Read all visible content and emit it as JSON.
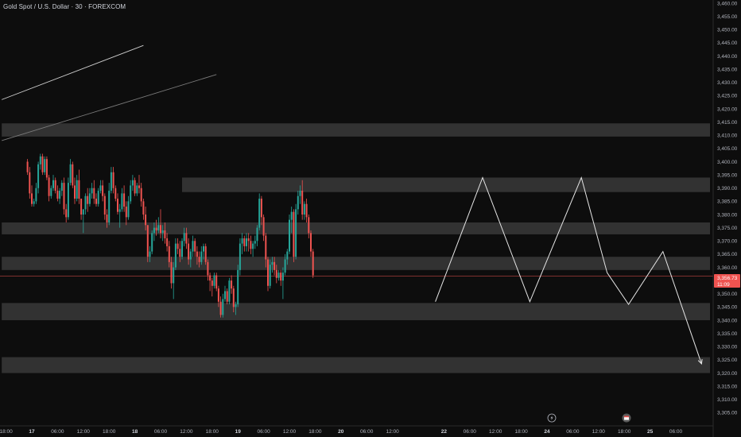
{
  "header": {
    "title": "Gold Spot / U.S. Dollar · 30 · FOREXCOM"
  },
  "price_tag": {
    "price": "3,356.73",
    "countdown": "11:09"
  },
  "icons": {
    "lightning": "lightning-icon",
    "calendar": "calendar-icon"
  },
  "colors": {
    "bg": "#0d0d0d",
    "up": "#26a69a",
    "down": "#ef5350",
    "zone": "#3a3a3a",
    "projection": "#e6e6e6",
    "price_line": "#ef5350"
  },
  "chart_data": {
    "type": "candlestick",
    "title": "Gold Spot / U.S. Dollar · 30 · FOREXCOM",
    "ylim": [
      3303,
      3462
    ],
    "y_ticks": [
      3305,
      3310,
      3315,
      3320,
      3325,
      3330,
      3335,
      3340,
      3345,
      3350,
      3355,
      3360,
      3365,
      3370,
      3375,
      3380,
      3385,
      3390,
      3395,
      3400,
      3405,
      3410,
      3415,
      3420,
      3425,
      3430,
      3435,
      3440,
      3445,
      3450,
      3455,
      3460
    ],
    "x_ticks": [
      {
        "label": "18:00",
        "t": -6
      },
      {
        "label": "17",
        "t": 0,
        "day": true
      },
      {
        "label": "06:00",
        "t": 6
      },
      {
        "label": "12:00",
        "t": 12
      },
      {
        "label": "18:00",
        "t": 18
      },
      {
        "label": "18",
        "t": 24,
        "day": true
      },
      {
        "label": "06:00",
        "t": 30
      },
      {
        "label": "12:00",
        "t": 36
      },
      {
        "label": "18:00",
        "t": 42
      },
      {
        "label": "19",
        "t": 48,
        "day": true
      },
      {
        "label": "06:00",
        "t": 54
      },
      {
        "label": "12:00",
        "t": 60
      },
      {
        "label": "18:00",
        "t": 66
      },
      {
        "label": "20",
        "t": 72,
        "day": true
      },
      {
        "label": "06:00",
        "t": 78
      },
      {
        "label": "12:00",
        "t": 84
      },
      {
        "label": "22",
        "t": 96,
        "day": true
      },
      {
        "label": "06:00",
        "t": 102
      },
      {
        "label": "12:00",
        "t": 108
      },
      {
        "label": "18:00",
        "t": 114
      },
      {
        "label": "24",
        "t": 120,
        "day": true
      },
      {
        "label": "06:00",
        "t": 126
      },
      {
        "label": "12:00",
        "t": 132
      },
      {
        "label": "18:00",
        "t": 138
      },
      {
        "label": "25",
        "t": 144,
        "day": true
      },
      {
        "label": "06:00",
        "t": 150
      }
    ],
    "zones": [
      {
        "t0": -7,
        "t1": 158,
        "y0": 3409.5,
        "y1": 3414.5
      },
      {
        "t0": 35,
        "t1": 168,
        "y0": 3388.5,
        "y1": 3394
      },
      {
        "t0": -7,
        "t1": 168,
        "y0": 3372.5,
        "y1": 3377
      },
      {
        "t0": -7,
        "t1": 168,
        "y0": 3359,
        "y1": 3364
      },
      {
        "t0": -7,
        "t1": 168,
        "y0": 3340,
        "y1": 3346.5
      },
      {
        "t0": -7,
        "t1": 175,
        "y0": 3320,
        "y1": 3326
      }
    ],
    "trendlines": [
      {
        "t0": -7,
        "y0": 3423.5,
        "t1": 26,
        "y1": 3444
      },
      {
        "t0": -7,
        "y0": 3408,
        "t1": 43,
        "y1": 3433
      }
    ],
    "projection_path": [
      [
        94,
        3347
      ],
      [
        105,
        3394
      ],
      [
        116,
        3347
      ],
      [
        128,
        3394
      ],
      [
        134,
        3358
      ],
      [
        139,
        3346
      ],
      [
        147,
        3366
      ],
      [
        156,
        3323.5
      ]
    ],
    "current_price": 3356.73,
    "candles": [
      [
        3400,
        3401,
        3395,
        3396
      ],
      [
        3396,
        3398,
        3386,
        3388
      ],
      [
        3388,
        3391,
        3383,
        3384
      ],
      [
        3384,
        3386,
        3383,
        3385
      ],
      [
        3385,
        3392,
        3384,
        3390
      ],
      [
        3390,
        3400,
        3388,
        3399
      ],
      [
        3399,
        3403,
        3397,
        3402
      ],
      [
        3402,
        3403,
        3395,
        3396
      ],
      [
        3396,
        3402,
        3395,
        3401
      ],
      [
        3401,
        3402,
        3393,
        3394
      ],
      [
        3394,
        3395,
        3385,
        3387
      ],
      [
        3387,
        3391,
        3386,
        3390
      ],
      [
        3390,
        3395,
        3389,
        3393
      ],
      [
        3393,
        3394,
        3388,
        3389
      ],
      [
        3389,
        3391,
        3385,
        3386
      ],
      [
        3386,
        3390,
        3384,
        3389
      ],
      [
        3389,
        3393,
        3387,
        3392
      ],
      [
        3392,
        3394,
        3380,
        3382
      ],
      [
        3382,
        3384,
        3377,
        3379
      ],
      [
        3379,
        3394,
        3378,
        3392
      ],
      [
        3392,
        3401,
        3391,
        3399
      ],
      [
        3399,
        3400,
        3390,
        3391
      ],
      [
        3391,
        3394,
        3384,
        3386
      ],
      [
        3386,
        3395,
        3385,
        3393
      ],
      [
        3393,
        3397,
        3384,
        3386
      ],
      [
        3386,
        3386,
        3378,
        3380
      ],
      [
        3380,
        3382,
        3373,
        3382
      ],
      [
        3382,
        3388,
        3380,
        3387
      ],
      [
        3387,
        3390,
        3381,
        3384
      ],
      [
        3384,
        3390,
        3383,
        3388
      ],
      [
        3388,
        3392,
        3386,
        3390
      ],
      [
        3390,
        3393,
        3384,
        3386
      ],
      [
        3386,
        3388,
        3383,
        3384
      ],
      [
        3384,
        3390,
        3383,
        3389
      ],
      [
        3389,
        3393,
        3388,
        3391
      ],
      [
        3391,
        3393,
        3385,
        3387
      ],
      [
        3387,
        3388,
        3378,
        3380
      ],
      [
        3380,
        3382,
        3375,
        3377
      ],
      [
        3377,
        3392,
        3376,
        3389
      ],
      [
        3389,
        3398,
        3388,
        3396
      ],
      [
        3396,
        3398,
        3388,
        3390
      ],
      [
        3390,
        3391,
        3385,
        3386
      ],
      [
        3386,
        3388,
        3380,
        3381
      ],
      [
        3381,
        3384,
        3375,
        3382
      ],
      [
        3382,
        3390,
        3381,
        3388
      ],
      [
        3388,
        3391,
        3381,
        3383
      ],
      [
        3383,
        3385,
        3376,
        3379
      ],
      [
        3379,
        3387,
        3378,
        3385
      ],
      [
        3385,
        3393,
        3384,
        3391
      ],
      [
        3391,
        3395,
        3389,
        3393
      ],
      [
        3393,
        3394,
        3387,
        3388
      ],
      [
        3388,
        3392,
        3387,
        3391
      ],
      [
        3391,
        3395,
        3388,
        3390
      ],
      [
        3390,
        3392,
        3383,
        3385
      ],
      [
        3385,
        3386,
        3378,
        3380
      ],
      [
        3380,
        3383,
        3374,
        3376
      ],
      [
        3376,
        3376,
        3362,
        3364
      ],
      [
        3364,
        3368,
        3362,
        3366
      ],
      [
        3366,
        3374,
        3365,
        3373
      ],
      [
        3373,
        3377,
        3370,
        3375
      ],
      [
        3375,
        3378,
        3372,
        3374
      ],
      [
        3374,
        3379,
        3373,
        3376
      ],
      [
        3376,
        3382,
        3371,
        3373
      ],
      [
        3373,
        3376,
        3370,
        3374
      ],
      [
        3374,
        3377,
        3369,
        3371
      ],
      [
        3371,
        3373,
        3366,
        3368
      ],
      [
        3368,
        3370,
        3360,
        3362
      ],
      [
        3362,
        3364,
        3352,
        3354
      ],
      [
        3354,
        3362,
        3348,
        3360
      ],
      [
        3360,
        3371,
        3359,
        3369
      ],
      [
        3369,
        3371,
        3365,
        3367
      ],
      [
        3367,
        3370,
        3362,
        3364
      ],
      [
        3364,
        3371,
        3363,
        3370
      ],
      [
        3370,
        3375,
        3368,
        3373
      ],
      [
        3373,
        3375,
        3367,
        3369
      ],
      [
        3369,
        3371,
        3361,
        3363
      ],
      [
        3363,
        3367,
        3360,
        3366
      ],
      [
        3366,
        3372,
        3364,
        3370
      ],
      [
        3370,
        3371,
        3364,
        3366
      ],
      [
        3366,
        3368,
        3361,
        3364
      ],
      [
        3364,
        3366,
        3360,
        3362
      ],
      [
        3362,
        3368,
        3361,
        3366
      ],
      [
        3366,
        3369,
        3363,
        3368
      ],
      [
        3368,
        3369,
        3361,
        3362
      ],
      [
        3362,
        3363,
        3355,
        3357
      ],
      [
        3357,
        3358,
        3351,
        3355
      ],
      [
        3355,
        3356,
        3349,
        3353
      ],
      [
        3353,
        3358,
        3352,
        3357
      ],
      [
        3357,
        3358,
        3351,
        3352
      ],
      [
        3352,
        3353,
        3345,
        3347
      ],
      [
        3347,
        3349,
        3341,
        3342
      ],
      [
        3342,
        3350,
        3341,
        3348
      ],
      [
        3348,
        3353,
        3347,
        3351
      ],
      [
        3351,
        3352,
        3346,
        3347
      ],
      [
        3347,
        3356,
        3346,
        3355
      ],
      [
        3355,
        3357,
        3350,
        3352
      ],
      [
        3352,
        3353,
        3343,
        3345
      ],
      [
        3345,
        3347,
        3342,
        3346
      ],
      [
        3346,
        3361,
        3345,
        3359
      ],
      [
        3359,
        3371,
        3357,
        3369
      ],
      [
        3369,
        3373,
        3365,
        3371
      ],
      [
        3371,
        3372,
        3366,
        3368
      ],
      [
        3368,
        3373,
        3366,
        3371
      ],
      [
        3371,
        3373,
        3366,
        3370
      ],
      [
        3370,
        3372,
        3365,
        3367
      ],
      [
        3367,
        3370,
        3364,
        3369
      ],
      [
        3369,
        3372,
        3367,
        3370
      ],
      [
        3370,
        3376,
        3368,
        3375
      ],
      [
        3375,
        3388,
        3374,
        3386
      ],
      [
        3386,
        3387,
        3376,
        3379
      ],
      [
        3379,
        3380,
        3370,
        3372
      ],
      [
        3372,
        3373,
        3360,
        3363
      ],
      [
        3363,
        3364,
        3351,
        3353
      ],
      [
        3353,
        3363,
        3352,
        3361
      ],
      [
        3361,
        3364,
        3358,
        3362
      ],
      [
        3362,
        3364,
        3357,
        3359
      ],
      [
        3359,
        3361,
        3354,
        3356
      ],
      [
        3356,
        3359,
        3355,
        3358
      ],
      [
        3358,
        3359,
        3353,
        3355
      ],
      [
        3355,
        3360,
        3348,
        3358
      ],
      [
        3358,
        3365,
        3357,
        3363
      ],
      [
        3363,
        3367,
        3361,
        3366
      ],
      [
        3366,
        3380,
        3365,
        3378
      ],
      [
        3378,
        3383,
        3373,
        3381
      ],
      [
        3381,
        3382,
        3362,
        3364
      ],
      [
        3364,
        3384,
        3363,
        3382
      ],
      [
        3382,
        3389,
        3380,
        3387
      ],
      [
        3387,
        3391,
        3384,
        3389
      ],
      [
        3389,
        3393,
        3378,
        3380
      ],
      [
        3380,
        3385,
        3378,
        3384
      ],
      [
        3384,
        3386,
        3377,
        3379
      ],
      [
        3379,
        3380,
        3371,
        3373
      ],
      [
        3373,
        3374,
        3364,
        3366
      ],
      [
        3366,
        3367,
        3356,
        3357
      ]
    ]
  }
}
